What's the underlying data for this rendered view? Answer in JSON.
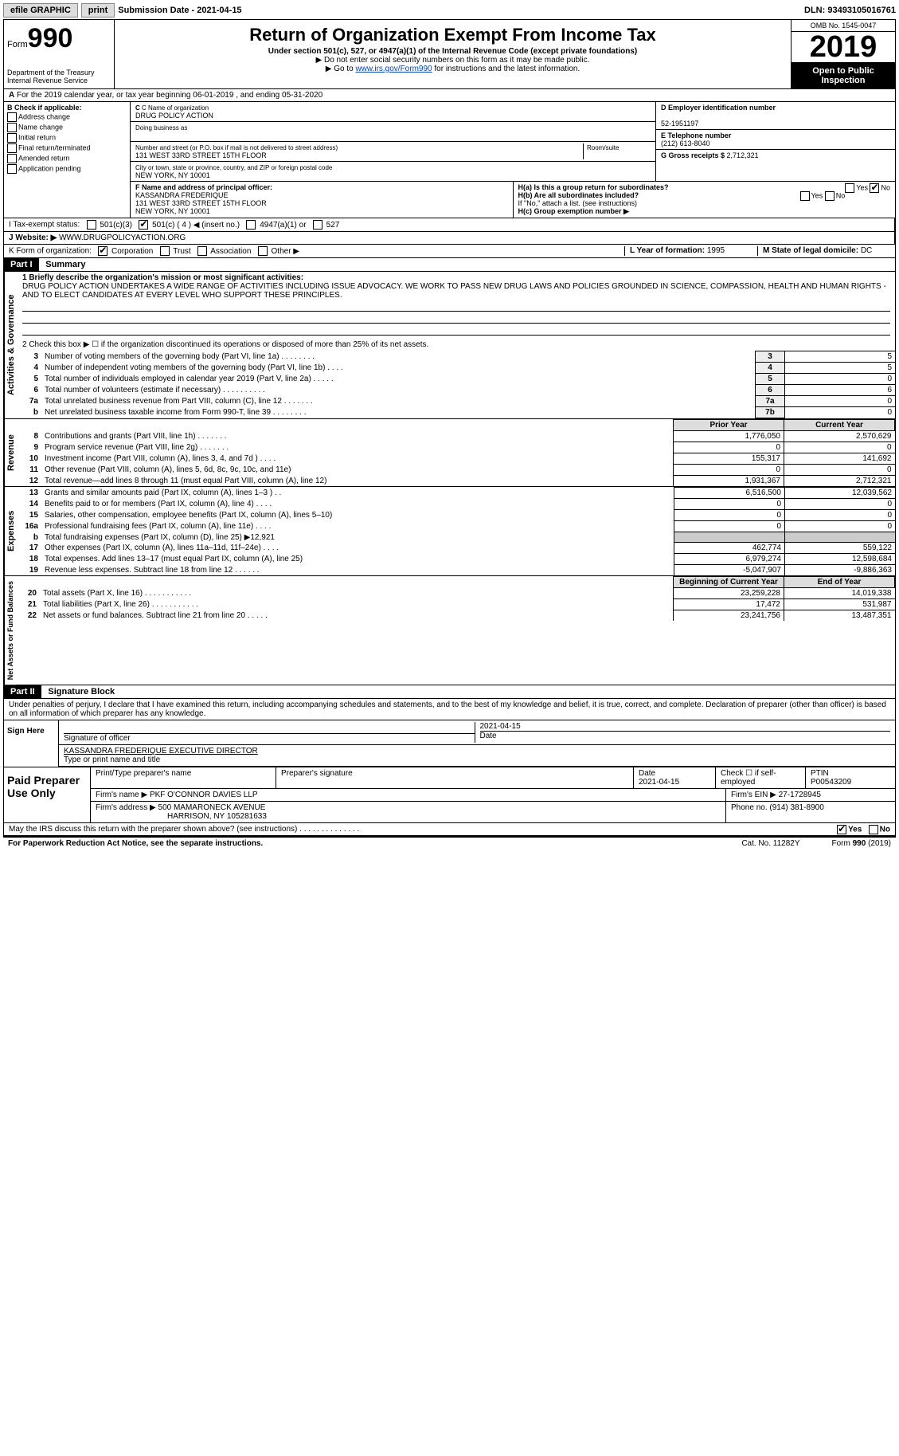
{
  "topbar": {
    "efile": "efile GRAPHIC",
    "print": "print",
    "submission_label": "Submission Date - ",
    "submission_date": "2021-04-15",
    "dln_label": "DLN: ",
    "dln": "93493105016761"
  },
  "header": {
    "form_prefix": "Form",
    "form_num": "990",
    "dept": "Department of the Treasury\nInternal Revenue Service",
    "title": "Return of Organization Exempt From Income Tax",
    "sub1": "Under section 501(c), 527, or 4947(a)(1) of the Internal Revenue Code (except private foundations)",
    "sub2": "▶ Do not enter social security numbers on this form as it may be made public.",
    "sub3_pre": "▶ Go to ",
    "sub3_link": "www.irs.gov/Form990",
    "sub3_post": " for instructions and the latest information.",
    "omb": "OMB No. 1545-0047",
    "year": "2019",
    "inspect": "Open to Public Inspection"
  },
  "line_a": "For the 2019 calendar year, or tax year beginning 06-01-2019    , and ending 05-31-2020",
  "b": {
    "label": "B Check if applicable:",
    "opts": [
      "Address change",
      "Name change",
      "Initial return",
      "Final return/terminated",
      "Amended return",
      "Application pending"
    ]
  },
  "c": {
    "name_lbl": "C Name of organization",
    "name": "DRUG POLICY ACTION",
    "dba_lbl": "Doing business as",
    "dba": "",
    "street_lbl": "Number and street (or P.O. box if mail is not delivered to street address)",
    "room_lbl": "Room/suite",
    "street": "131 WEST 33RD STREET 15TH FLOOR",
    "city_lbl": "City or town, state or province, country, and ZIP or foreign postal code",
    "city": "NEW YORK, NY  10001"
  },
  "d": {
    "lbl": "D Employer identification number",
    "val": "52-1951197"
  },
  "e": {
    "lbl": "E Telephone number",
    "val": "(212) 613-8040"
  },
  "g": {
    "lbl": "G Gross receipts $ ",
    "val": "2,712,321"
  },
  "f": {
    "lbl": "F Name and address of principal officer:",
    "name": "KASSANDRA FREDERIQUE",
    "addr1": "131 WEST 33RD STREET 15TH FLOOR",
    "addr2": "NEW YORK, NY  10001"
  },
  "h": {
    "a_lbl": "H(a)  Is this a group return for subordinates?",
    "a_yes": "Yes",
    "a_no": "No",
    "b_lbl": "H(b)  Are all subordinates included?",
    "b_note": "If \"No,\" attach a list. (see instructions)",
    "c_lbl": "H(c)  Group exemption number ▶"
  },
  "i": {
    "lbl": "I   Tax-exempt status:",
    "opts": [
      "501(c)(3)",
      "501(c) ( 4 ) ◀ (insert no.)",
      "4947(a)(1) or",
      "527"
    ],
    "checked_idx": 1
  },
  "j": {
    "lbl": "J   Website: ▶ ",
    "val": "WWW.DRUGPOLICYACTION.ORG"
  },
  "k": {
    "lbl": "K Form of organization:",
    "opts": [
      "Corporation",
      "Trust",
      "Association",
      "Other ▶"
    ],
    "checked_idx": 0
  },
  "l": {
    "lbl": "L Year of formation: ",
    "val": "1995"
  },
  "m": {
    "lbl": "M State of legal domicile: ",
    "val": "DC"
  },
  "part1": {
    "hdr": "Part I",
    "title": "Summary",
    "tabs": [
      "Activities & Governance",
      "Revenue",
      "Expenses",
      "Net Assets or Fund Balances"
    ],
    "line1_lbl": "1   Briefly describe the organization's mission or most significant activities:",
    "mission": "DRUG POLICY ACTION UNDERTAKES A WIDE RANGE OF ACTIVITIES INCLUDING ISSUE ADVOCACY. WE WORK TO PASS NEW DRUG LAWS AND POLICIES GROUNDED IN SCIENCE, COMPASSION, HEALTH AND HUMAN RIGHTS - AND TO ELECT CANDIDATES AT EVERY LEVEL WHO SUPPORT THESE PRINCIPLES.",
    "line2": "2   Check this box ▶ ☐  if the organization discontinued its operations or disposed of more than 25% of its net assets.",
    "gov_rows": [
      {
        "n": "3",
        "t": "Number of voting members of the governing body (Part VI, line 1a)   .     .     .     .     .     .     .     .",
        "box": "3",
        "v": "5"
      },
      {
        "n": "4",
        "t": "Number of independent voting members of the governing body (Part VI, line 1b)   .     .     .     .",
        "box": "4",
        "v": "5"
      },
      {
        "n": "5",
        "t": "Total number of individuals employed in calendar year 2019 (Part V, line 2a)   .     .     .     .     .",
        "box": "5",
        "v": "0"
      },
      {
        "n": "6",
        "t": "Total number of volunteers (estimate if necessary)   .     .     .     .     .     .     .     .     .     .",
        "box": "6",
        "v": "6"
      },
      {
        "n": "7a",
        "t": "Total unrelated business revenue from Part VIII, column (C), line 12   .     .     .     .     .     .     .",
        "box": "7a",
        "v": "0"
      },
      {
        "n": "b",
        "t": "Net unrelated business taxable income from Form 990-T, line 39   .     .     .     .     .     .     .     .",
        "box": "7b",
        "v": "0"
      }
    ],
    "col_hdrs": [
      "Prior Year",
      "Current Year"
    ],
    "rev_rows": [
      {
        "n": "8",
        "t": "Contributions and grants (Part VIII, line 1h)   .     .     .     .     .     .     .",
        "p": "1,776,050",
        "c": "2,570,629"
      },
      {
        "n": "9",
        "t": "Program service revenue (Part VIII, line 2g)   .     .     .     .     .     .     .",
        "p": "0",
        "c": "0"
      },
      {
        "n": "10",
        "t": "Investment income (Part VIII, column (A), lines 3, 4, and 7d )   .     .     .     .",
        "p": "155,317",
        "c": "141,692"
      },
      {
        "n": "11",
        "t": "Other revenue (Part VIII, column (A), lines 5, 6d, 8c, 9c, 10c, and 11e)",
        "p": "0",
        "c": "0"
      },
      {
        "n": "12",
        "t": "Total revenue—add lines 8 through 11 (must equal Part VIII, column (A), line 12)",
        "p": "1,931,367",
        "c": "2,712,321"
      }
    ],
    "exp_rows": [
      {
        "n": "13",
        "t": "Grants and similar amounts paid (Part IX, column (A), lines 1–3 )   .     .",
        "p": "6,516,500",
        "c": "12,039,562"
      },
      {
        "n": "14",
        "t": "Benefits paid to or for members (Part IX, column (A), line 4)   .     .     .     .",
        "p": "0",
        "c": "0"
      },
      {
        "n": "15",
        "t": "Salaries, other compensation, employee benefits (Part IX, column (A), lines 5–10)",
        "p": "0",
        "c": "0"
      },
      {
        "n": "16a",
        "t": "Professional fundraising fees (Part IX, column (A), line 11e)   .     .     .     .",
        "p": "0",
        "c": "0"
      },
      {
        "n": "b",
        "t": "Total fundraising expenses (Part IX, column (D), line 25) ▶12,921",
        "p": "",
        "c": "",
        "shade": true
      },
      {
        "n": "17",
        "t": "Other expenses (Part IX, column (A), lines 11a–11d, 11f–24e)   .     .     .     .",
        "p": "462,774",
        "c": "559,122"
      },
      {
        "n": "18",
        "t": "Total expenses. Add lines 13–17 (must equal Part IX, column (A), line 25)",
        "p": "6,979,274",
        "c": "12,598,684"
      },
      {
        "n": "19",
        "t": "Revenue less expenses. Subtract line 18 from line 12   .     .     .     .     .     .",
        "p": "-5,047,907",
        "c": "-9,886,363"
      }
    ],
    "net_hdrs": [
      "Beginning of Current Year",
      "End of Year"
    ],
    "net_rows": [
      {
        "n": "20",
        "t": "Total assets (Part X, line 16)   .     .     .     .     .     .     .     .     .     .     .",
        "p": "23,259,228",
        "c": "14,019,338"
      },
      {
        "n": "21",
        "t": "Total liabilities (Part X, line 26)   .   .     .     .     .     .     .     .     .     .     .",
        "p": "17,472",
        "c": "531,987"
      },
      {
        "n": "22",
        "t": "Net assets or fund balances. Subtract line 21 from line 20   .     .     .     .     .",
        "p": "23,241,756",
        "c": "13,487,351"
      }
    ]
  },
  "part2": {
    "hdr": "Part II",
    "title": "Signature Block",
    "decl": "Under penalties of perjury, I declare that I have examined this return, including accompanying schedules and statements, and to the best of my knowledge and belief, it is true, correct, and complete. Declaration of preparer (other than officer) is based on all information of which preparer has any knowledge.",
    "sign_here": "Sign Here",
    "sig_officer": "Signature of officer",
    "sig_date": "2021-04-15",
    "date_lbl": "Date",
    "officer_name": "KASSANDRA FREDERIQUE  EXECUTIVE DIRECTOR",
    "name_lbl": "Type or print name and title",
    "paid": "Paid Preparer Use Only",
    "p_name_lbl": "Print/Type preparer's name",
    "p_sig_lbl": "Preparer's signature",
    "p_date_lbl": "Date",
    "p_date": "2021-04-15",
    "p_self": "Check ☐ if self-employed",
    "ptin_lbl": "PTIN",
    "ptin": "P00543209",
    "firm_lbl": "Firm's name    ▶ ",
    "firm": "PKF O'CONNOR DAVIES LLP",
    "ein_lbl": "Firm's EIN ▶ ",
    "ein": "27-1728945",
    "addr_lbl": "Firm's address ▶ ",
    "addr1": "500 MAMARONECK AVENUE",
    "addr2": "HARRISON, NY  105281633",
    "phone_lbl": "Phone no. ",
    "phone": "(914) 381-8900",
    "discuss": "May the IRS discuss this return with the preparer shown above? (see instructions)   .     .     .     .     .     .     .     .     .     .     .     .     .     .",
    "yes": "Yes",
    "no": "No"
  },
  "footer": {
    "l": "For Paperwork Reduction Act Notice, see the separate instructions.",
    "m": "Cat. No. 11282Y",
    "r": "Form 990 (2019)"
  }
}
